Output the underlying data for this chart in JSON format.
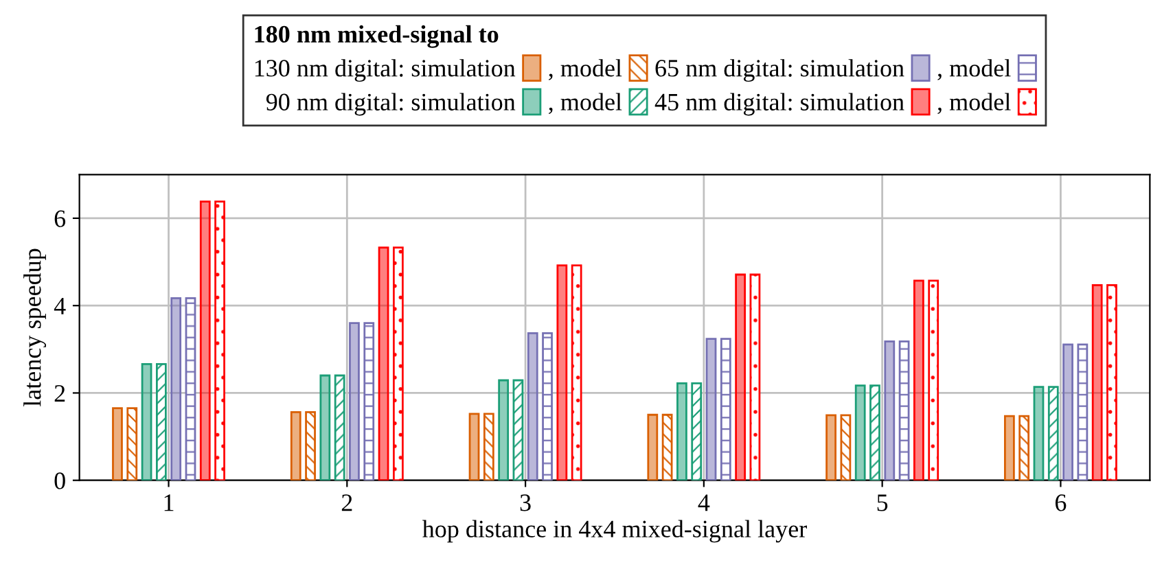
{
  "chart_data": {
    "type": "bar",
    "xlabel": "hop distance in 4x4 mixed-signal layer",
    "ylabel": "latency speedup",
    "legend_title": "180 nm mixed-signal to",
    "x": [
      1,
      2,
      3,
      4,
      5,
      6
    ],
    "series": [
      {
        "name": "130 nm digital: simulation",
        "color": "#d95f02",
        "values": [
          1.65,
          1.56,
          1.52,
          1.5,
          1.49,
          1.47
        ]
      },
      {
        "name": ", model",
        "color": "#d95f02",
        "values": [
          1.65,
          1.56,
          1.52,
          1.5,
          1.49,
          1.47
        ]
      },
      {
        "name": "90 nm digital: simulation",
        "color": "#1b9e77",
        "values": [
          2.66,
          2.4,
          2.29,
          2.22,
          2.17,
          2.14
        ]
      },
      {
        "name": ", model",
        "color": "#1b9e77",
        "values": [
          2.66,
          2.4,
          2.29,
          2.22,
          2.17,
          2.14
        ]
      },
      {
        "name": "65 nm digital: simulation",
        "color": "#7570b3",
        "values": [
          4.17,
          3.6,
          3.37,
          3.24,
          3.18,
          3.11
        ]
      },
      {
        "name": ", model",
        "color": "#7570b3",
        "values": [
          4.17,
          3.6,
          3.37,
          3.24,
          3.18,
          3.11
        ]
      },
      {
        "name": "45 nm digital: simulation",
        "color": "#ff0000",
        "values": [
          6.38,
          5.33,
          4.92,
          4.71,
          4.57,
          4.47
        ]
      },
      {
        "name": ", model",
        "color": "#ff0000",
        "values": [
          6.38,
          5.33,
          4.92,
          4.71,
          4.57,
          4.47
        ]
      }
    ],
    "xlim": [
      0.5,
      6.5
    ],
    "xticks": [
      1,
      2,
      3,
      4,
      5,
      6
    ],
    "ylim": [
      0,
      7
    ],
    "yticks": [
      0,
      2,
      4,
      6
    ],
    "grid": true,
    "legend": "top"
  }
}
